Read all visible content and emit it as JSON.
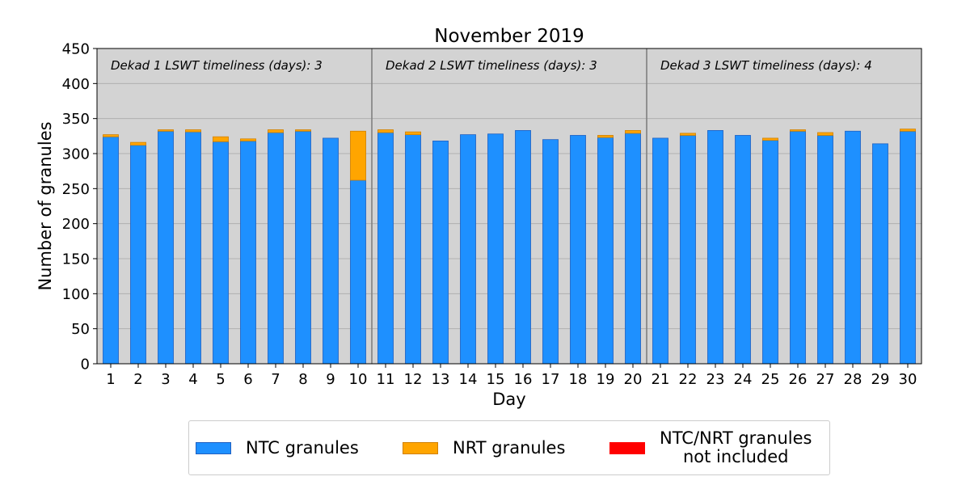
{
  "chart_data": {
    "type": "bar",
    "stacked": true,
    "title": "November 2019",
    "xlabel": "Day",
    "ylabel": "Number of granules",
    "ylim": [
      0,
      450
    ],
    "yticks": [
      0,
      50,
      100,
      150,
      200,
      250,
      300,
      350,
      400,
      450
    ],
    "grid": true,
    "categories": [
      "1",
      "2",
      "3",
      "4",
      "5",
      "6",
      "7",
      "8",
      "9",
      "10",
      "11",
      "12",
      "13",
      "14",
      "15",
      "16",
      "17",
      "18",
      "19",
      "20",
      "21",
      "22",
      "23",
      "24",
      "25",
      "26",
      "27",
      "28",
      "29",
      "30"
    ],
    "series": [
      {
        "name": "NTC granules",
        "color": "#1e90ff",
        "values": [
          324,
          312,
          332,
          331,
          317,
          318,
          330,
          332,
          322,
          262,
          330,
          327,
          318,
          327,
          328,
          333,
          320,
          326,
          323,
          329,
          322,
          326,
          333,
          326,
          319,
          332,
          326,
          332,
          314,
          332
        ]
      },
      {
        "name": "NRT granules",
        "color": "#ffa500",
        "values": [
          3,
          4,
          2,
          3,
          7,
          3,
          4,
          2,
          0,
          70,
          4,
          4,
          0,
          0,
          0,
          0,
          0,
          0,
          3,
          4,
          0,
          3,
          0,
          0,
          3,
          2,
          4,
          0,
          0,
          3
        ]
      },
      {
        "name": "NTC/NRT granules\nnot included",
        "color": "#ff0000",
        "values": [
          0,
          0,
          0,
          0,
          0,
          0,
          0,
          0,
          0,
          0,
          0,
          0,
          0,
          0,
          0,
          0,
          0,
          0,
          0,
          0,
          0,
          0,
          0,
          0,
          0,
          0,
          0,
          0,
          0,
          0
        ]
      }
    ],
    "dekad_separators_after_day": [
      10,
      20
    ],
    "annotations": [
      "Dekad 1 LSWT timeliness (days): 3",
      "Dekad 2 LSWT timeliness (days): 3",
      "Dekad 3 LSWT timeliness (days): 4"
    ],
    "legend_position": "bottom-center",
    "plot_background": "#d3d3d3"
  },
  "legend": {
    "ntc_label": "NTC granules",
    "nrt_label": "NRT granules",
    "excluded_label_line1": "NTC/NRT granules",
    "excluded_label_line2": "not included"
  }
}
